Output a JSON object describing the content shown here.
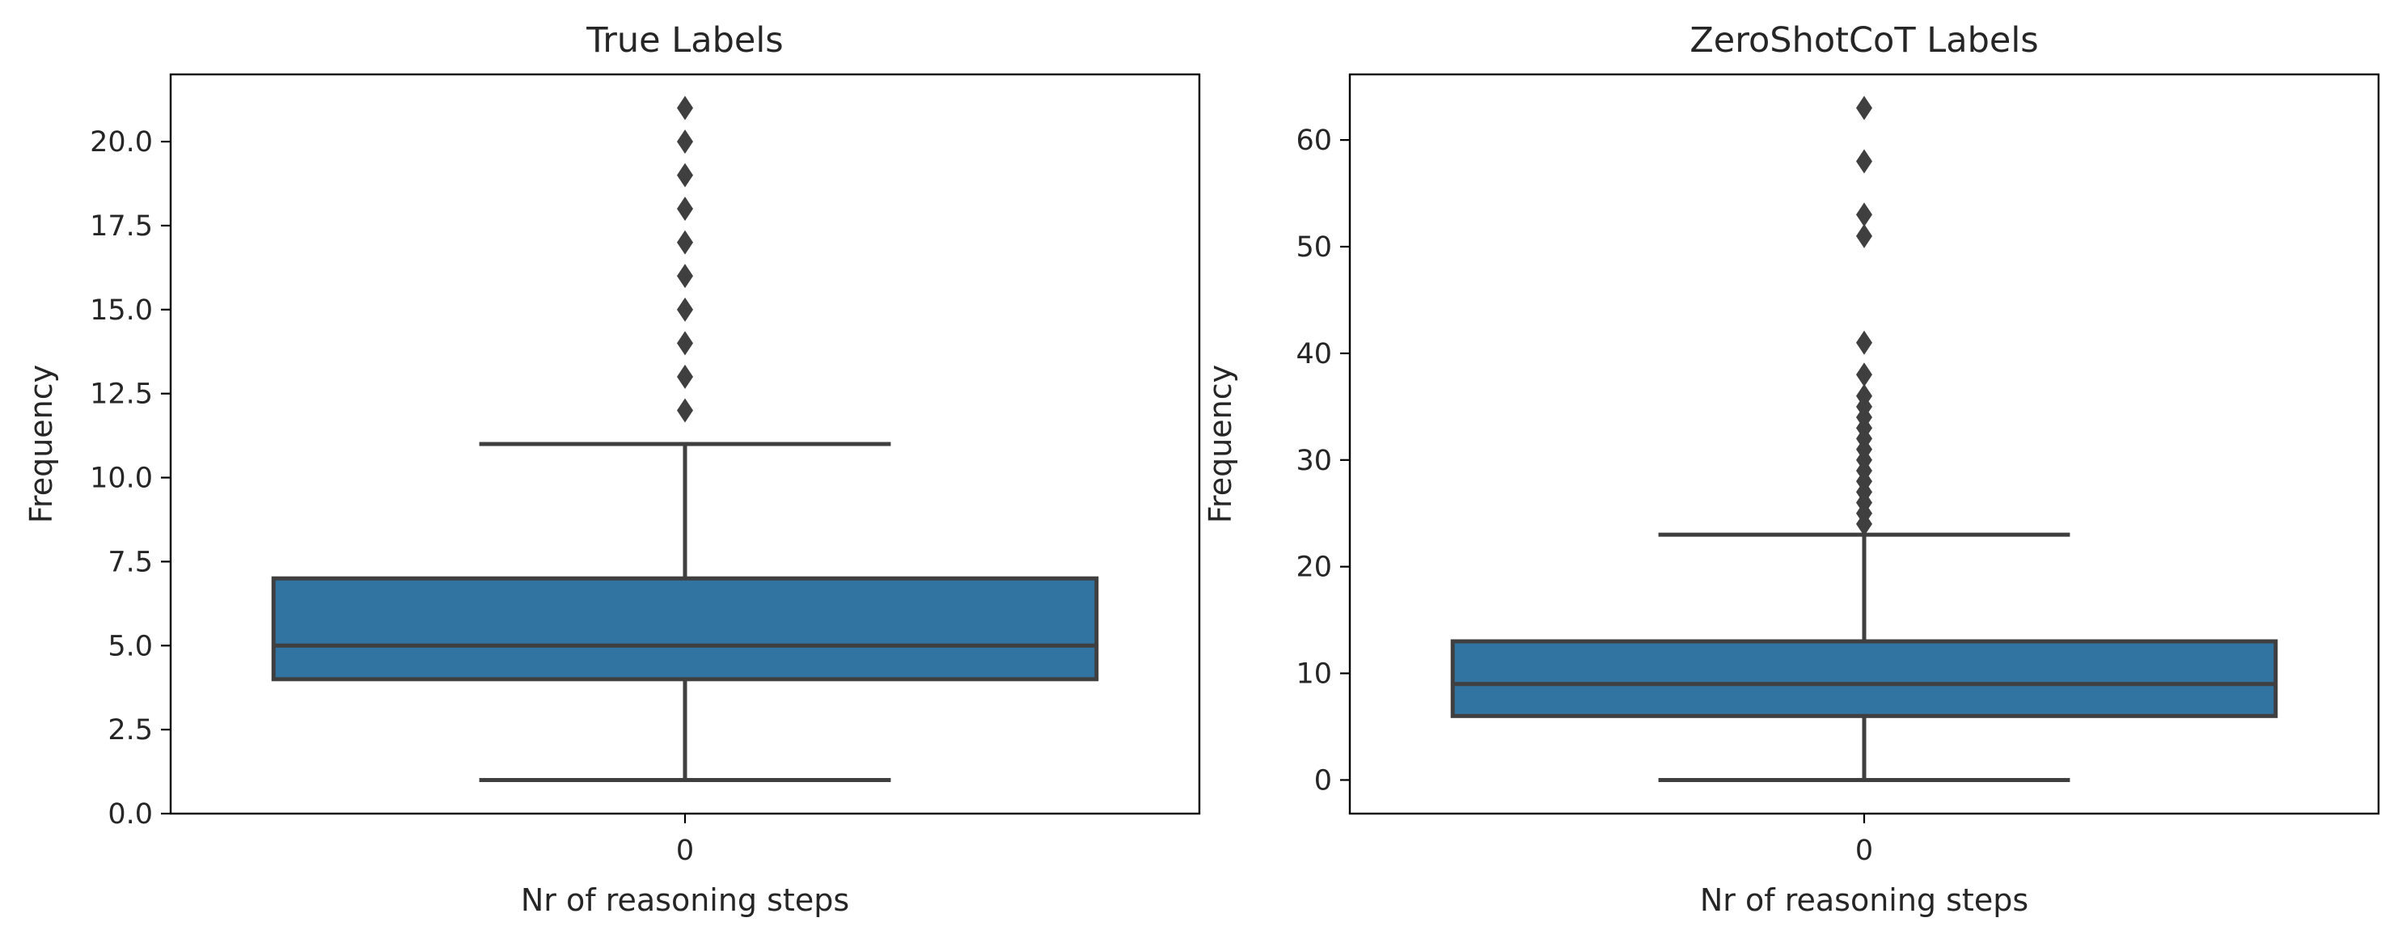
{
  "chart_data": [
    {
      "type": "box",
      "title": "True Labels",
      "xlabel": "Nr of reasoning steps",
      "ylabel": "Frequency",
      "categories": [
        "0"
      ],
      "ylim": [
        0,
        22
      ],
      "yticks": [
        0.0,
        2.5,
        5.0,
        7.5,
        10.0,
        12.5,
        15.0,
        17.5,
        20.0
      ],
      "ytick_labels": [
        "0.0",
        "2.5",
        "5.0",
        "7.5",
        "10.0",
        "12.5",
        "15.0",
        "17.5",
        "20.0"
      ],
      "box": {
        "whisker_low": 1,
        "q1": 4,
        "median": 5,
        "q3": 7,
        "whisker_high": 11
      },
      "outliers": [
        12,
        13,
        14,
        15,
        16,
        17,
        18,
        19,
        20,
        21
      ],
      "box_color": "#3274a1",
      "line_color": "#3f3f3f"
    },
    {
      "type": "box",
      "title": "ZeroShotCoT Labels",
      "xlabel": "Nr of reasoning steps",
      "ylabel": "Frequency",
      "categories": [
        "0"
      ],
      "ylim": [
        -3.15,
        66.15
      ],
      "yticks": [
        0,
        10,
        20,
        30,
        40,
        50,
        60
      ],
      "ytick_labels": [
        "0",
        "10",
        "20",
        "30",
        "40",
        "50",
        "60"
      ],
      "box": {
        "whisker_low": 0,
        "q1": 6,
        "median": 9,
        "q3": 13,
        "whisker_high": 23
      },
      "outliers": [
        24,
        25,
        26,
        27,
        28,
        29,
        30,
        31,
        32,
        33,
        34,
        35,
        36,
        38,
        41,
        51,
        53,
        58,
        63
      ],
      "box_color": "#3274a1",
      "line_color": "#3f3f3f"
    }
  ]
}
